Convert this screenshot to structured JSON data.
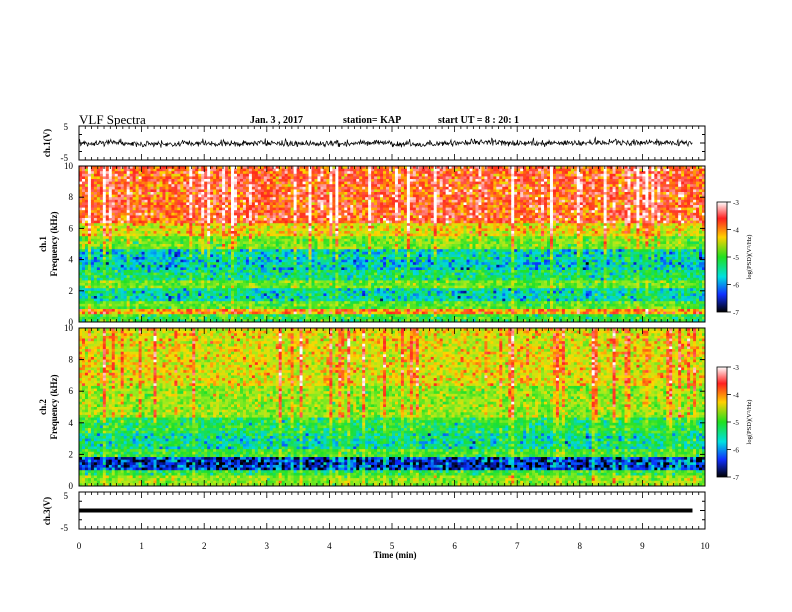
{
  "header": {
    "title": "VLF Spectra",
    "date": "Jan. 3 , 2017",
    "station": "station= KAP",
    "start": "start UT = 8 : 20: 1"
  },
  "chart_data": [
    {
      "type": "line",
      "name": "ch1-waveform",
      "ylabel": "ch.1(V)",
      "ylim": [
        -5,
        5
      ],
      "yticks": [
        "5",
        "-5"
      ],
      "xlim": [
        0,
        10
      ],
      "line_color": "#000000",
      "x_end": 9.8,
      "trace": "noisy waveform centred near 0 V, amplitude roughly ±1.5 V"
    },
    {
      "type": "heatmap",
      "name": "ch1-spectrogram",
      "ylabel_top": "ch.1",
      "ylabel": "Frequency (kHz)",
      "xlim": [
        0,
        10
      ],
      "ylim": [
        0,
        10
      ],
      "yticks": [
        "0",
        "2",
        "4",
        "6",
        "8",
        "10"
      ],
      "colorbar": {
        "label": "log(PSD)(V²/Hz)",
        "range": [
          -7,
          -3
        ],
        "ticks": [
          "-3",
          "-4",
          "-5",
          "-6",
          "-7"
        ]
      },
      "bands": [
        {
          "from": 0,
          "to": 0.5,
          "level": -5.5
        },
        {
          "from": 0.5,
          "to": 0.9,
          "level": -4.2
        },
        {
          "from": 0.9,
          "to": 1.3,
          "level": -5.3
        },
        {
          "from": 1.3,
          "to": 2.1,
          "level": -6.0
        },
        {
          "from": 2.1,
          "to": 2.6,
          "level": -5.2
        },
        {
          "from": 2.6,
          "to": 3.4,
          "level": -5.8
        },
        {
          "from": 3.4,
          "to": 4.6,
          "level": -6.1
        },
        {
          "from": 4.6,
          "to": 5.5,
          "level": -5.2
        },
        {
          "from": 5.5,
          "to": 6.4,
          "level": -4.6
        },
        {
          "from": 6.4,
          "to": 10,
          "level": -3.9
        }
      ]
    },
    {
      "type": "heatmap",
      "name": "ch2-spectrogram",
      "ylabel_top": "ch.2",
      "ylabel": "Frequency (kHz)",
      "xlim": [
        0,
        10
      ],
      "ylim": [
        0,
        10
      ],
      "yticks": [
        "0",
        "2",
        "4",
        "6",
        "8",
        "10"
      ],
      "colorbar": {
        "label": "log(PSD)(V²/Hz)",
        "range": [
          -7,
          -3
        ],
        "ticks": [
          "-3",
          "-4",
          "-5",
          "-6",
          "-7"
        ]
      },
      "bands": [
        {
          "from": 0,
          "to": 0.6,
          "level": -5.0
        },
        {
          "from": 0.6,
          "to": 1.0,
          "level": -5.5
        },
        {
          "from": 1.0,
          "to": 1.8,
          "level": -6.7
        },
        {
          "from": 1.8,
          "to": 2.4,
          "level": -5.4
        },
        {
          "from": 2.4,
          "to": 3.4,
          "level": -5.9
        },
        {
          "from": 3.4,
          "to": 4.4,
          "level": -5.6
        },
        {
          "from": 4.4,
          "to": 6.4,
          "level": -5.0
        },
        {
          "from": 6.4,
          "to": 10,
          "level": -4.6
        }
      ]
    },
    {
      "type": "line",
      "name": "ch3-waveform",
      "ylabel": "ch.3(V)",
      "ylim": [
        -5,
        5
      ],
      "yticks": [
        "5",
        "-5"
      ],
      "xlim": [
        0,
        10
      ],
      "line_color": "#000000",
      "constant_value": 0,
      "x_end": 9.8,
      "xlabel": "Time (min)",
      "xticks": [
        "0",
        "1",
        "2",
        "3",
        "4",
        "5",
        "6",
        "7",
        "8",
        "9",
        "10"
      ]
    }
  ]
}
